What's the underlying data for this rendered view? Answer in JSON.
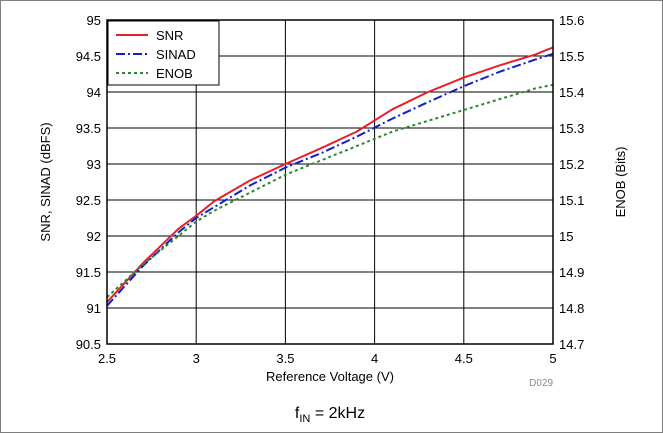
{
  "chart_data": {
    "type": "line",
    "xlabel": "Reference Voltage (V)",
    "ylabel": "SNR, SINAD (dBFS)",
    "y2label": "ENOB (Bits)",
    "xlim": [
      2.5,
      5
    ],
    "ylim": [
      90.5,
      95
    ],
    "y2lim": [
      14.7,
      15.6
    ],
    "xticks": [
      "2.5",
      "3",
      "3.5",
      "4",
      "4.5",
      "5"
    ],
    "yticks": [
      "90.5",
      "91",
      "91.5",
      "92",
      "92.5",
      "93",
      "93.5",
      "94",
      "94.5",
      "95"
    ],
    "y2ticks": [
      "14.7",
      "14.8",
      "14.9",
      "15",
      "15.1",
      "15.2",
      "15.3",
      "15.4",
      "15.5",
      "15.6"
    ],
    "grid": true,
    "legend_position": "top-left",
    "figure_code": "D029",
    "caption": {
      "main": "f",
      "sub": "IN",
      "rest": " = 2kHz"
    },
    "series": [
      {
        "name": "SNR",
        "axis": "left",
        "color": "#e8202a",
        "dash": "solid",
        "x": [
          2.5,
          2.7,
          2.9,
          3.0,
          3.1,
          3.3,
          3.5,
          3.7,
          3.9,
          4.1,
          4.3,
          4.5,
          4.7,
          4.9,
          5.0
        ],
        "y": [
          91.08,
          91.62,
          92.1,
          92.28,
          92.48,
          92.77,
          93.0,
          93.22,
          93.45,
          93.76,
          94.0,
          94.2,
          94.37,
          94.52,
          94.62
        ]
      },
      {
        "name": "SINAD",
        "axis": "left",
        "color": "#1020c8",
        "dash": "dashdot",
        "x": [
          2.5,
          2.7,
          2.9,
          3.0,
          3.1,
          3.3,
          3.5,
          3.7,
          3.9,
          4.1,
          4.3,
          4.5,
          4.7,
          4.9,
          5.0
        ],
        "y": [
          91.03,
          91.58,
          92.05,
          92.25,
          92.4,
          92.7,
          92.95,
          93.15,
          93.38,
          93.63,
          93.86,
          94.08,
          94.28,
          94.45,
          94.53
        ]
      },
      {
        "name": "ENOB",
        "axis": "right",
        "color": "#2a8a2a",
        "dash": "dotted",
        "x": [
          2.5,
          2.7,
          2.9,
          3.0,
          3.1,
          3.3,
          3.5,
          3.7,
          3.9,
          4.1,
          4.3,
          4.5,
          4.7,
          4.9,
          5.0
        ],
        "y": [
          14.83,
          14.92,
          15.0,
          15.04,
          15.07,
          15.12,
          15.17,
          15.21,
          15.25,
          15.29,
          15.32,
          15.35,
          15.38,
          15.41,
          15.42
        ]
      }
    ]
  }
}
